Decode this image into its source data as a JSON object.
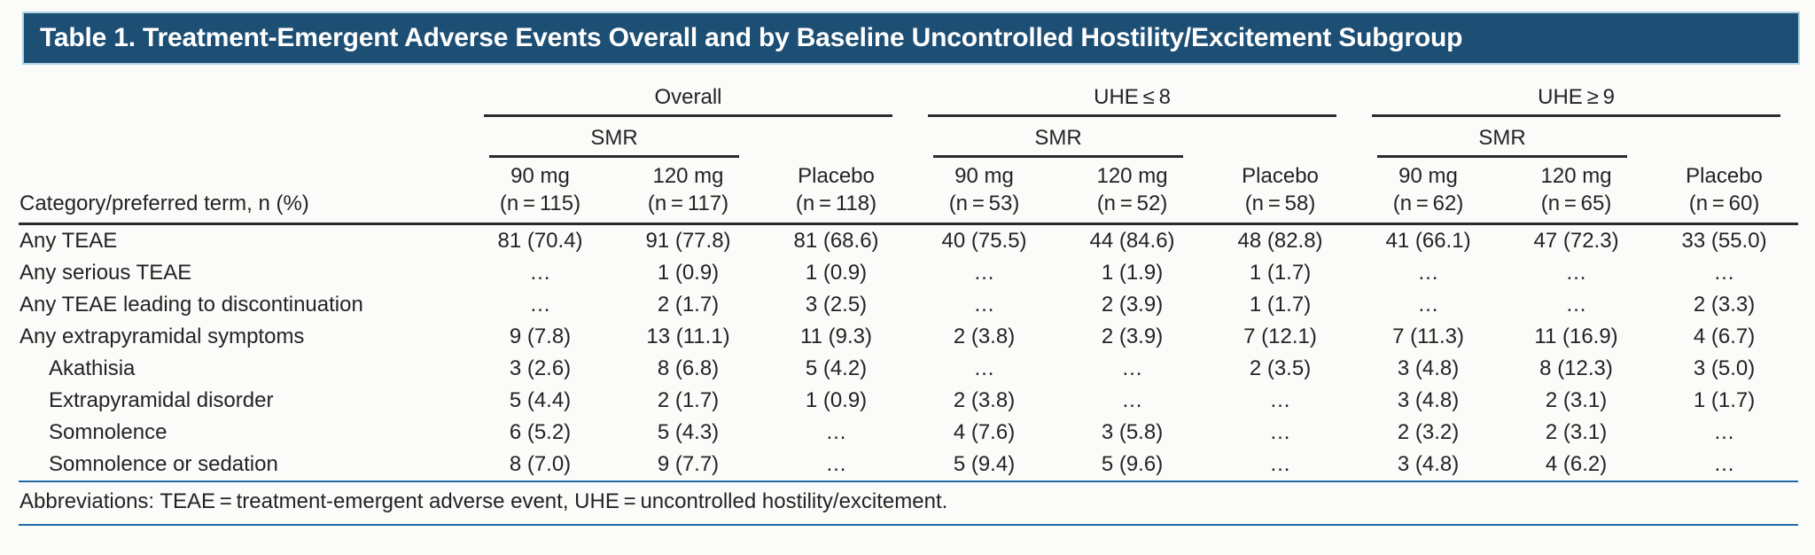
{
  "title": "Table 1. Treatment-Emergent Adverse Events Overall and by Baseline Uncontrolled Hostility/Excitement Subgroup",
  "colors": {
    "title_bar_background": "#1d4e74",
    "title_bar_edge": "#aed2e2",
    "rule_blue": "#2069a8",
    "rule_black": "#2e2a2b",
    "text": "#262223"
  },
  "table": {
    "row_header": "Category/preferred term, n (%)",
    "groups": [
      {
        "label": "Overall",
        "subgroup": "SMR",
        "columns": [
          {
            "dose": "90 mg",
            "n": "(n = 115)"
          },
          {
            "dose": "120 mg",
            "n": "(n = 117)"
          },
          {
            "dose": "Placebo",
            "n": "(n = 118)"
          }
        ]
      },
      {
        "label": "UHE ≤ 8",
        "subgroup": "SMR",
        "columns": [
          {
            "dose": "90 mg",
            "n": "(n = 53)"
          },
          {
            "dose": "120 mg",
            "n": "(n = 52)"
          },
          {
            "dose": "Placebo",
            "n": "(n = 58)"
          }
        ]
      },
      {
        "label": "UHE ≥ 9",
        "subgroup": "SMR",
        "columns": [
          {
            "dose": "90 mg",
            "n": "(n = 62)"
          },
          {
            "dose": "120 mg",
            "n": "(n = 65)"
          },
          {
            "dose": "Placebo",
            "n": "(n = 60)"
          }
        ]
      }
    ],
    "rows": [
      {
        "label": "Any TEAE",
        "indent": false,
        "values": [
          "81 (70.4)",
          "91 (77.8)",
          "81 (68.6)",
          "40 (75.5)",
          "44 (84.6)",
          "48 (82.8)",
          "41 (66.1)",
          "47 (72.3)",
          "33 (55.0)"
        ]
      },
      {
        "label": "Any serious TEAE",
        "indent": false,
        "values": [
          "…",
          "1 (0.9)",
          "1 (0.9)",
          "…",
          "1 (1.9)",
          "1 (1.7)",
          "…",
          "…",
          "…"
        ]
      },
      {
        "label": "Any TEAE leading to discontinuation",
        "indent": false,
        "values": [
          "…",
          "2 (1.7)",
          "3 (2.5)",
          "…",
          "2 (3.9)",
          "1 (1.7)",
          "…",
          "…",
          "2 (3.3)"
        ]
      },
      {
        "label": "Any extrapyramidal symptoms",
        "indent": false,
        "values": [
          "9 (7.8)",
          "13 (11.1)",
          "11 (9.3)",
          "2 (3.8)",
          "2 (3.9)",
          "7 (12.1)",
          "7 (11.3)",
          "11 (16.9)",
          "4 (6.7)"
        ]
      },
      {
        "label": "Akathisia",
        "indent": true,
        "values": [
          "3 (2.6)",
          "8 (6.8)",
          "5 (4.2)",
          "…",
          "…",
          "2 (3.5)",
          "3 (4.8)",
          "8 (12.3)",
          "3 (5.0)"
        ]
      },
      {
        "label": "Extrapyramidal disorder",
        "indent": true,
        "values": [
          "5 (4.4)",
          "2 (1.7)",
          "1 (0.9)",
          "2 (3.8)",
          "…",
          "…",
          "3 (4.8)",
          "2 (3.1)",
          "1 (1.7)"
        ]
      },
      {
        "label": "Somnolence",
        "indent": true,
        "values": [
          "6 (5.2)",
          "5 (4.3)",
          "…",
          "4 (7.6)",
          "3 (5.8)",
          "…",
          "2 (3.2)",
          "2 (3.1)",
          "…"
        ]
      },
      {
        "label": "Somnolence or sedation",
        "indent": true,
        "values": [
          "8 (7.0)",
          "9 (7.7)",
          "…",
          "5 (9.4)",
          "5 (9.6)",
          "…",
          "3 (4.8)",
          "4 (6.2)",
          "…"
        ]
      }
    ],
    "footnote": "Abbreviations: TEAE = treatment-emergent adverse event, UHE = uncontrolled hostility/excitement."
  }
}
